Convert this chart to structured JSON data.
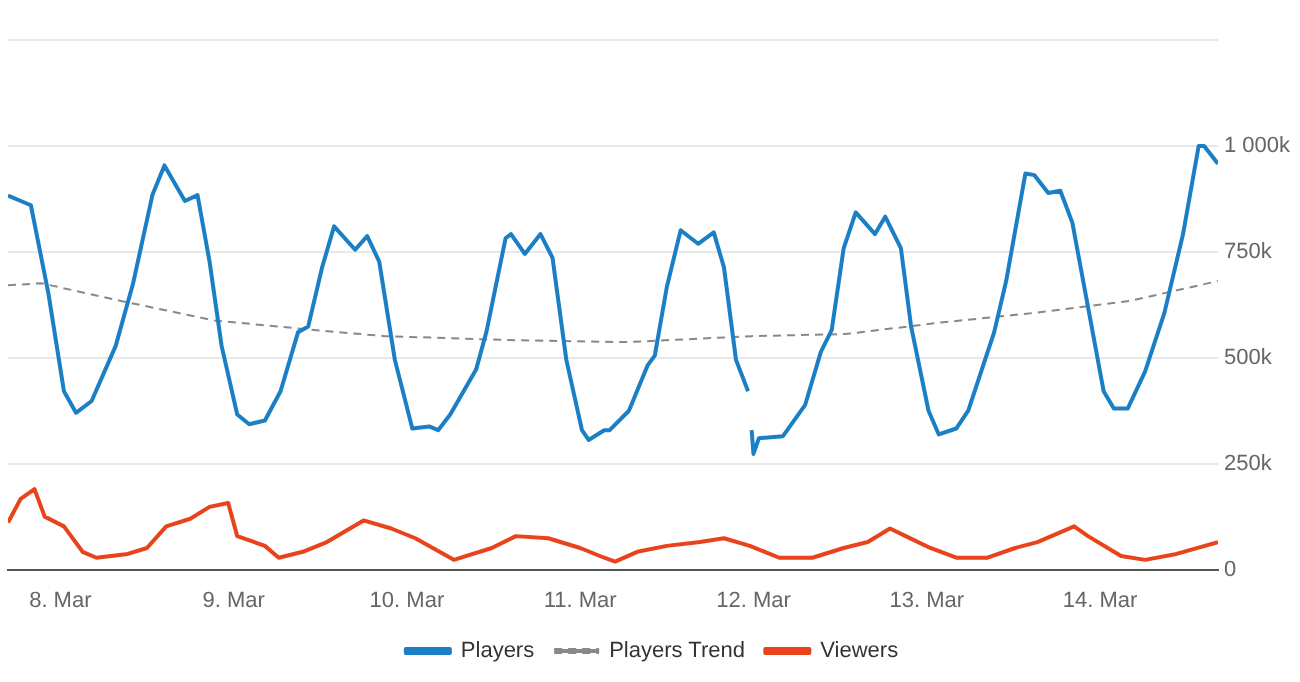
{
  "chart_data": {
    "type": "line",
    "xlim": [
      "--03-07T16:45",
      "--03-14T16:20"
    ],
    "xticks": [
      {
        "value": "--03-08",
        "label": "8. Mar"
      },
      {
        "value": "--03-09",
        "label": "9. Mar"
      },
      {
        "value": "--03-10",
        "label": "10. Mar"
      },
      {
        "value": "--03-11",
        "label": "11. Mar"
      },
      {
        "value": "--03-12",
        "label": "12. Mar"
      },
      {
        "value": "--03-13",
        "label": "13. Mar"
      },
      {
        "value": "--03-14",
        "label": "14. Mar"
      }
    ],
    "ylim": [
      0,
      1250000
    ],
    "yticks": [
      {
        "value": 0,
        "label": "0"
      },
      {
        "value": 250000,
        "label": "250k"
      },
      {
        "value": 500000,
        "label": "500k"
      },
      {
        "value": 750000,
        "label": "750k"
      },
      {
        "value": 1000000,
        "label": "1 000k"
      },
      {
        "value": 1250000,
        "label": null
      }
    ],
    "grid": "y",
    "legend": "bottom",
    "marker": "none",
    "series": [
      {
        "name": "Players",
        "color": "#1a7fc4",
        "line_style": "solid",
        "x": [
          "--03-07T16:45",
          "--03-07T19:55",
          "--03-07T22:20",
          "--03-08T00:30",
          "--03-08T02:10",
          "--03-08T04:20",
          "--03-08T07:40",
          "--03-08T10:05",
          "--03-08T12:45",
          "--03-08T14:25",
          "--03-08T17:15",
          "--03-08T19:00",
          "--03-08T20:40",
          "--03-08T22:20",
          "--03-09T00:30",
          "--03-09T02:10",
          "--03-09T04:20",
          "--03-09T06:30",
          "--03-09T08:55",
          "--03-09T10:20",
          "--03-09T12:15",
          "--03-09T13:55",
          "--03-09T16:50",
          "--03-09T18:30",
          "--03-09T20:10",
          "--03-09T22:20",
          "--03-10T00:45",
          "--03-10T03:05",
          "--03-10T04:20",
          "--03-10T06:00",
          "--03-10T09:35",
          "--03-10T11:00",
          "--03-10T13:40",
          "--03-10T14:25",
          "--03-10T16:20",
          "--03-10T18:30",
          "--03-10T20:10",
          "--03-10T22:05",
          "--03-11T00:15",
          "--03-11T01:10",
          "--03-11T03:20",
          "--03-11T04:05",
          "--03-11T06:45",
          "--03-11T09:20",
          "--03-11T10:20",
          "--03-11T12:00",
          "--03-11T13:55",
          "--03-11T16:20",
          "--03-11T18:30",
          "--03-11T19:55",
          "--03-11T21:35",
          "--03-11T23:15",
          "--03-11T23:30",
          "--03-11T23:45",
          "--03-12T00:00",
          "--03-12T00:45",
          "--03-12T04:05",
          "--03-12T07:10",
          "--03-12T09:20",
          "--03-12T10:50",
          "--03-12T12:30",
          "--03-12T14:10",
          "--03-12T16:50",
          "--03-12T18:15",
          "--03-12T20:25",
          "--03-12T21:50",
          "--03-13T00:15",
          "--03-13T01:40",
          "--03-13T04:05",
          "--03-13T05:45",
          "--03-13T09:20",
          "--03-13T11:00",
          "--03-13T13:40",
          "--03-13T14:55",
          "--03-13T16:50",
          "--03-13T18:30",
          "--03-13T20:10",
          "--03-13T22:20",
          "--03-14T00:30",
          "--03-14T01:55",
          "--03-14T03:50",
          "--03-14T06:15",
          "--03-14T08:55",
          "--03-14T11:30",
          "--03-14T13:40",
          "--03-14T14:25",
          "--03-14T16:20"
        ],
        "values": [
          883000,
          860000,
          653000,
          421000,
          370000,
          398000,
          528000,
          676000,
          884000,
          954000,
          870000,
          884000,
          727000,
          528000,
          366000,
          343000,
          352000,
          421000,
          560000,
          574000,
          713000,
          810000,
          755000,
          787000,
          727000,
          495000,
          333000,
          338000,
          329000,
          366000,
          472000,
          560000,
          782000,
          792000,
          745000,
          792000,
          736000,
          495000,
          329000,
          306000,
          329000,
          329000,
          375000,
          482000,
          505000,
          667000,
          801000,
          769000,
          796000,
          713000,
          495000,
          421000,
          null,
          329000,
          273000,
          310000,
          315000,
          389000,
          514000,
          565000,
          759000,
          843000,
          792000,
          833000,
          759000,
          574000,
          375000,
          319000,
          333000,
          375000,
          560000,
          681000,
          935000,
          931000,
          889000,
          894000,
          819000,
          620000,
          421000,
          380000,
          380000,
          468000,
          606000,
          792000,
          1000000,
          1000000,
          958000
        ]
      },
      {
        "name": "Players Trend",
        "color": "#888888",
        "line_style": "dashed",
        "x": [
          "--03-07T16:45",
          "--03-07T21:20",
          "--03-08T08:25",
          "--03-08T21:20",
          "--03-09T11:30",
          "--03-09T20:55",
          "--03-10T13:40",
          "--03-11T06:00",
          "--03-11T06:30",
          "--03-11T23:45",
          "--03-12T12:45",
          "--03-13T01:55",
          "--03-13T14:55",
          "--03-14T04:05",
          "--03-14T16:20"
        ],
        "values": [
          671000,
          676000,
          634000,
          588000,
          565000,
          551000,
          542000,
          537000,
          537000,
          551000,
          556000,
          583000,
          606000,
          634000,
          681000
        ]
      },
      {
        "name": "Viewers",
        "color": "#e8431b",
        "line_style": "solid",
        "x": [
          "--03-07T16:45",
          "--03-07T18:30",
          "--03-07T20:25",
          "--03-07T21:50",
          "--03-08T00:30",
          "--03-08T03:05",
          "--03-08T05:00",
          "--03-08T09:20",
          "--03-08T12:00",
          "--03-08T14:40",
          "--03-08T18:00",
          "--03-08T20:40",
          "--03-08T23:15",
          "--03-09T00:30",
          "--03-09T04:20",
          "--03-09T06:15",
          "--03-09T09:35",
          "--03-09T12:55",
          "--03-09T18:00",
          "--03-09T21:50",
          "--03-10T01:10",
          "--03-10T06:30",
          "--03-10T11:45",
          "--03-10T15:05",
          "--03-10T19:35",
          "--03-11T00:00",
          "--03-11T03:20",
          "--03-11T04:50",
          "--03-11T07:55",
          "--03-11T12:00",
          "--03-11T16:35",
          "--03-11T19:55",
          "--03-11T23:30",
          "--03-12T03:35",
          "--03-12T08:10",
          "--03-12T12:30",
          "--03-12T15:50",
          "--03-12T18:55",
          "--03-12T21:05",
          "--03-13T00:30",
          "--03-13T04:05",
          "--03-13T08:25",
          "--03-13T12:15",
          "--03-13T15:20",
          "--03-13T20:25",
          "--03-13T22:20",
          "--03-14T02:55",
          "--03-14T06:15",
          "--03-14T10:35",
          "--03-14T16:20"
        ],
        "values": [
          111000,
          167000,
          190000,
          125000,
          102000,
          42000,
          28000,
          37000,
          51000,
          102000,
          120000,
          148000,
          157000,
          79000,
          56000,
          28000,
          42000,
          65000,
          116000,
          97000,
          74000,
          23000,
          51000,
          79000,
          74000,
          51000,
          28000,
          19000,
          42000,
          56000,
          65000,
          74000,
          56000,
          28000,
          28000,
          51000,
          65000,
          97000,
          79000,
          51000,
          28000,
          28000,
          51000,
          65000,
          102000,
          79000,
          32000,
          23000,
          37000,
          65000
        ]
      }
    ]
  }
}
